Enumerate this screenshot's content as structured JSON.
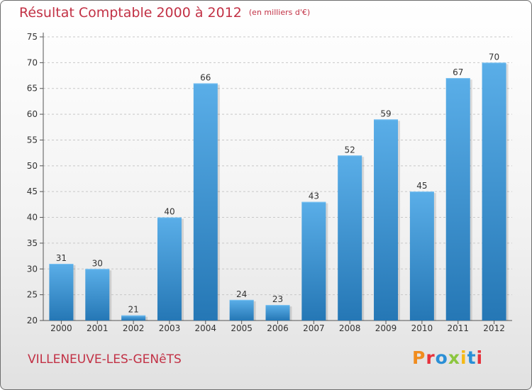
{
  "title": "Résultat Comptable 2000 à 2012",
  "title_unit": "(en milliers d'€)",
  "commune": "VILLENEUVE-LES-GENêTS",
  "logo_text": "Proxiti",
  "logo_colors": [
    "#f08c1e",
    "#e6323c",
    "#2a8fd6",
    "#8cc63f",
    "#f5b914",
    "#2a8fd6",
    "#e6323c"
  ],
  "colors": {
    "title": "#c23145",
    "bar_top": "#5aaee8",
    "bar_bottom": "#2577b5"
  },
  "chart_data": {
    "type": "bar",
    "title": "Résultat Comptable 2000 à 2012",
    "xlabel": "",
    "ylabel": "",
    "categories": [
      "2000",
      "2001",
      "2002",
      "2003",
      "2004",
      "2005",
      "2006",
      "2007",
      "2008",
      "2009",
      "2010",
      "2011",
      "2012"
    ],
    "values": [
      31,
      30,
      21,
      40,
      66,
      24,
      23,
      43,
      52,
      59,
      45,
      67,
      70
    ],
    "ylim": [
      20,
      75
    ],
    "yticks": [
      20,
      25,
      30,
      35,
      40,
      45,
      50,
      55,
      60,
      65,
      70,
      75
    ],
    "grid": true
  }
}
